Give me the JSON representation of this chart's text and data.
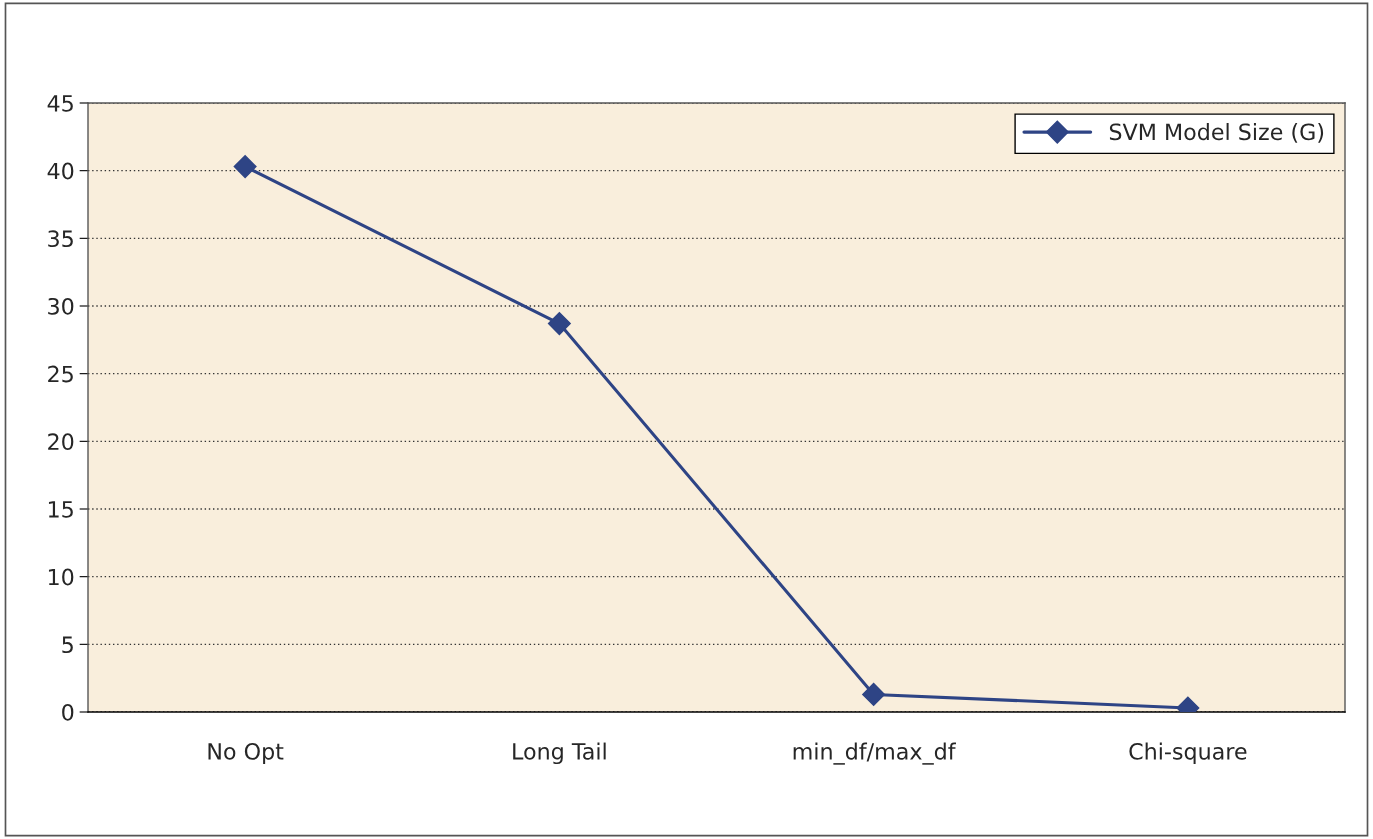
{
  "chart_data": {
    "type": "line",
    "categories": [
      "No Opt",
      "Long Tail",
      "min_df/max_df",
      "Chi-square"
    ],
    "series": [
      {
        "name": "SVM Model Size (G)",
        "color": "#2e4485",
        "values": [
          40.3,
          28.7,
          1.3,
          0.3
        ]
      }
    ],
    "ylim": [
      0,
      45
    ],
    "yticks": [
      0,
      5,
      10,
      15,
      20,
      25,
      30,
      35,
      40,
      45
    ],
    "grid": "y",
    "legend": "top right",
    "marker": "diamond",
    "line_style": "solid"
  }
}
